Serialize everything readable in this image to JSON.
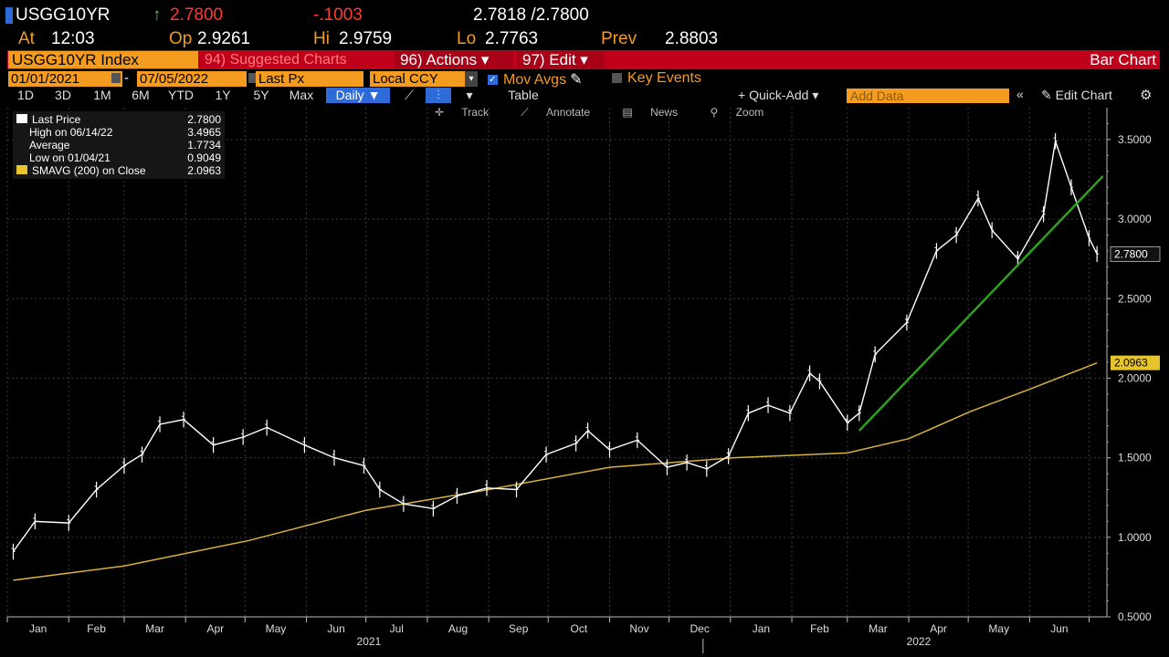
{
  "quote": {
    "ticker": "USGG10YR",
    "last": "2.7800",
    "change": "-.1003",
    "bid_ask": "2.7818 /2.7800",
    "time_label": "At",
    "time": "12:03",
    "open_label": "Op",
    "open": "2.9261",
    "high_label": "Hi",
    "high": "2.9759",
    "low_label": "Lo",
    "low": "2.7763",
    "prev_label": "Prev",
    "prev": "2.8803"
  },
  "toolbar": {
    "security": "USGG10YR Index",
    "suggested": "94) Suggested Charts",
    "actions": "96) Actions ▾",
    "edit": "97) Edit ▾",
    "chart_type": "Bar Chart",
    "start_date": "01/01/2021",
    "end_date": "07/05/2022",
    "date_sep": "-",
    "field": "Last Px",
    "currency": "Local CCY",
    "mov_avgs": "Mov Avgs",
    "key_events": "Key Events",
    "periods": [
      "1D",
      "3D",
      "1M",
      "6M",
      "YTD",
      "1Y",
      "5Y",
      "Max"
    ],
    "frequency": "Daily ▼",
    "table": "Table",
    "quick_add": "+ Quick-Add ▾",
    "add_data_placeholder": "Add Data",
    "edit_chart": "Edit Chart",
    "tools": [
      "Track",
      "Annotate",
      "News",
      "Zoom"
    ]
  },
  "legend": [
    {
      "label": "Last Price",
      "value": "2.7800"
    },
    {
      "label": "High on 06/14/22",
      "value": "3.4965"
    },
    {
      "label": "Average",
      "value": "1.7734"
    },
    {
      "label": "Low on 01/04/21",
      "value": "0.9049"
    },
    {
      "label": "SMAVG (200)  on Close",
      "value": "2.0963"
    }
  ],
  "colors": {
    "price": "#ffffff",
    "sma": "#d8b23a",
    "trendline": "#2fa01e",
    "accent": "#f39c1f",
    "header_red": "#c0001a",
    "up": "#30d158",
    "down": "#ff3b30"
  },
  "chart_data": {
    "type": "bar",
    "series": [
      {
        "name": "Last Price",
        "x": [
          "2021-01-04",
          "2021-01-15",
          "2021-02-01",
          "2021-02-15",
          "2021-03-01",
          "2021-03-10",
          "2021-03-19",
          "2021-03-31",
          "2021-04-15",
          "2021-04-30",
          "2021-05-12",
          "2021-05-31",
          "2021-06-15",
          "2021-06-30",
          "2021-07-08",
          "2021-07-20",
          "2021-08-04",
          "2021-08-16",
          "2021-08-31",
          "2021-09-15",
          "2021-09-30",
          "2021-10-15",
          "2021-10-21",
          "2021-11-01",
          "2021-11-15",
          "2021-11-30",
          "2021-12-10",
          "2021-12-20",
          "2021-12-31",
          "2022-01-10",
          "2022-01-20",
          "2022-01-31",
          "2022-02-10",
          "2022-02-15",
          "2022-03-01",
          "2022-03-07",
          "2022-03-15",
          "2022-03-31",
          "2022-04-15",
          "2022-04-25",
          "2022-05-06",
          "2022-05-13",
          "2022-05-26",
          "2022-06-08",
          "2022-06-14",
          "2022-06-22",
          "2022-07-01",
          "2022-07-05"
        ],
        "values": [
          0.91,
          1.1,
          1.09,
          1.3,
          1.45,
          1.52,
          1.71,
          1.74,
          1.58,
          1.63,
          1.69,
          1.58,
          1.5,
          1.45,
          1.3,
          1.21,
          1.18,
          1.26,
          1.31,
          1.3,
          1.52,
          1.59,
          1.67,
          1.55,
          1.61,
          1.44,
          1.47,
          1.43,
          1.51,
          1.78,
          1.83,
          1.78,
          2.03,
          1.98,
          1.72,
          1.78,
          2.15,
          2.35,
          2.8,
          2.9,
          3.13,
          2.93,
          2.75,
          3.03,
          3.49,
          3.2,
          2.88,
          2.78
        ]
      },
      {
        "name": "SMAVG (200)  on Close",
        "x": [
          "2021-01-04",
          "2021-03-01",
          "2021-05-03",
          "2021-07-01",
          "2021-09-01",
          "2021-11-01",
          "2022-01-03",
          "2022-03-01",
          "2022-04-01",
          "2022-05-02",
          "2022-06-01",
          "2022-07-05"
        ],
        "values": [
          0.73,
          0.82,
          0.98,
          1.17,
          1.3,
          1.44,
          1.5,
          1.53,
          1.62,
          1.79,
          1.93,
          2.096
        ]
      }
    ],
    "trendline": {
      "x": [
        "2022-03-07",
        "2022-07-08"
      ],
      "values": [
        1.67,
        3.27
      ]
    },
    "ylim": [
      0.5,
      3.7
    ],
    "y_ticks": [
      "0.5000",
      "1.0000",
      "1.5000",
      "2.0000",
      "2.5000",
      "3.0000",
      "3.5000"
    ],
    "x_ticks": [
      "Jan",
      "Feb",
      "Mar",
      "Apr",
      "May",
      "Jun",
      "Jul",
      "Aug",
      "Sep",
      "Oct",
      "Nov",
      "Dec",
      "Jan",
      "Feb",
      "Mar",
      "Apr",
      "May",
      "Jun"
    ],
    "years": [
      "2021",
      "2022"
    ],
    "last_value_label": "2.7800",
    "sma_value_label": "2.0963",
    "grid": true
  }
}
